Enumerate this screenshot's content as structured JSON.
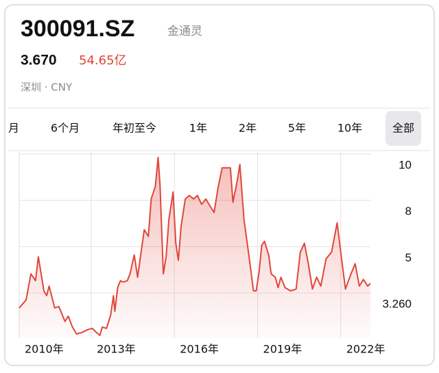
{
  "header": {
    "symbol": "300091.SZ",
    "name": "金通灵",
    "price": "3.670",
    "market_cap": "54.65亿",
    "exchange": "深圳 · CNY"
  },
  "tabs": {
    "items": [
      "月",
      "6个月",
      "年初至今",
      "1年",
      "2年",
      "5年",
      "10年",
      "全部"
    ],
    "selected": 7
  },
  "chart_data": {
    "type": "line",
    "color": "#e0453a",
    "grid": true,
    "x": [
      2010.4,
      2010.65,
      2010.82,
      2010.99,
      2011.09,
      2011.29,
      2011.39,
      2011.48,
      2011.68,
      2011.83,
      2012.05,
      2012.17,
      2012.32,
      2012.47,
      2012.67,
      2012.86,
      2013.04,
      2013.16,
      2013.31,
      2013.4,
      2013.55,
      2013.7,
      2013.8,
      2013.85,
      2013.95,
      2014.05,
      2014.15,
      2014.3,
      2014.4,
      2014.55,
      2014.67,
      2014.79,
      2014.91,
      2015.06,
      2015.16,
      2015.31,
      2015.41,
      2015.48,
      2015.6,
      2015.7,
      2015.8,
      2015.95,
      2016.05,
      2016.14,
      2016.24,
      2016.39,
      2016.54,
      2016.69,
      2016.83,
      2016.98,
      2017.13,
      2017.28,
      2017.43,
      2017.57,
      2017.72,
      2018.02,
      2018.11,
      2018.26,
      2018.36,
      2018.51,
      2018.71,
      2018.85,
      2018.95,
      2019.05,
      2019.15,
      2019.25,
      2019.4,
      2019.49,
      2019.64,
      2019.74,
      2019.84,
      2019.99,
      2020.19,
      2020.39,
      2020.54,
      2020.69,
      2020.83,
      2020.98,
      2021.13,
      2021.28,
      2021.47,
      2021.67,
      2021.87,
      2022.02,
      2022.17,
      2022.37,
      2022.52,
      2022.67,
      2022.82,
      2022.97,
      2023.07
    ],
    "values": [
      2.7,
      3.0,
      3.98,
      3.72,
      4.62,
      3.34,
      3.16,
      3.52,
      2.7,
      2.75,
      2.19,
      2.39,
      1.98,
      1.72,
      1.78,
      1.88,
      1.93,
      1.8,
      1.67,
      1.98,
      1.93,
      2.44,
      3.16,
      2.57,
      3.46,
      3.72,
      3.67,
      3.72,
      3.98,
      4.69,
      3.85,
      4.74,
      6.1,
      5.66,
      8.06,
      8.6,
      9.85,
      8.66,
      3.98,
      4.62,
      6.76,
      8.36,
      5.22,
      4.49,
      6.32,
      8.06,
      8.21,
      8.06,
      8.21,
      7.74,
      8.06,
      7.65,
      7.21,
      8.51,
      9.4,
      9.4,
      7.87,
      8.81,
      9.55,
      6.76,
      4.49,
      3.34,
      3.34,
      4.03,
      5.09,
      5.35,
      4.69,
      3.98,
      3.85,
      3.46,
      3.85,
      3.46,
      3.34,
      3.41,
      4.8,
      5.22,
      4.36,
      3.41,
      3.85,
      3.52,
      4.54,
      4.8,
      6.54,
      4.62,
      3.41,
      3.98,
      4.36,
      3.52,
      3.77,
      3.52,
      3.62
    ],
    "xlim": [
      2010.4,
      2023.07
    ],
    "xticks": [
      {
        "value": 2010,
        "label": "2010年"
      },
      {
        "value": 2013,
        "label": "2013年"
      },
      {
        "value": 2016,
        "label": "2016年"
      },
      {
        "value": 2019,
        "label": "2019年"
      },
      {
        "value": 2022,
        "label": "2022年"
      }
    ],
    "ylim": [
      1.6,
      10
    ],
    "yticks": [
      {
        "value": 3.26,
        "label": "3.260"
      },
      5,
      8,
      10
    ]
  }
}
